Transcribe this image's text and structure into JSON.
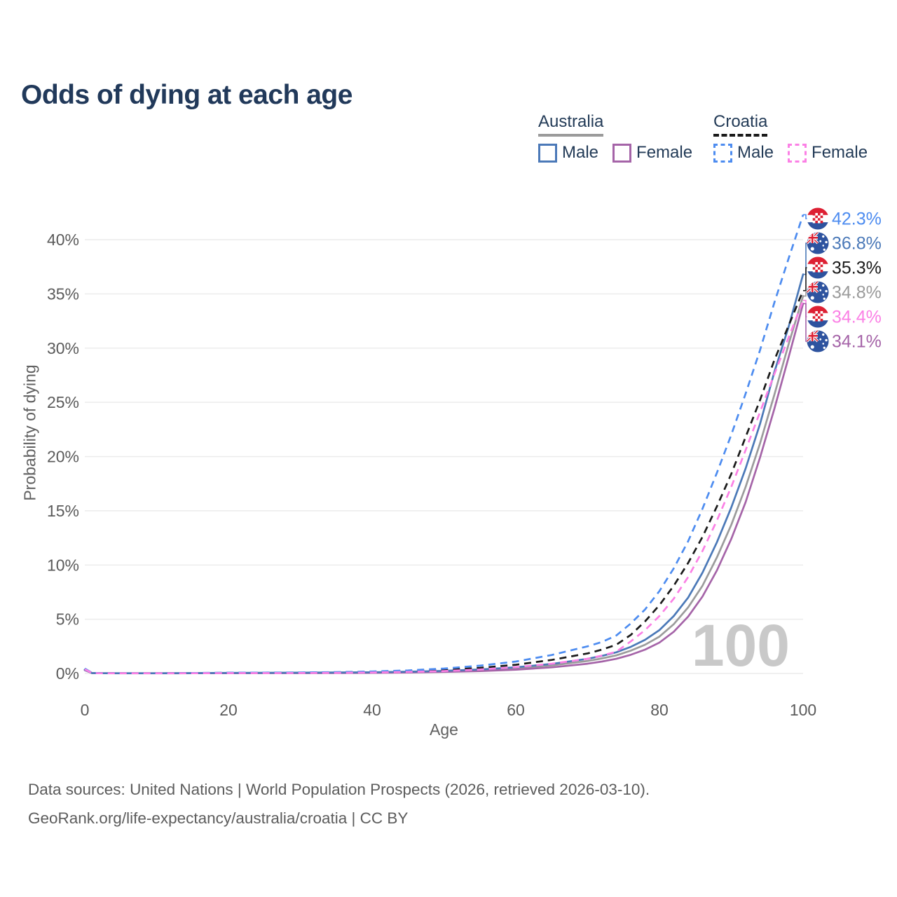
{
  "title": "Odds of dying at each age",
  "legend": {
    "australia": {
      "label": "Australia",
      "male": "Male",
      "female": "Female"
    },
    "croatia": {
      "label": "Croatia",
      "male": "Male",
      "female": "Female"
    }
  },
  "footer": {
    "line1": "Data sources: United Nations | World Population Prospects (2026, retrieved 2026-03-10).",
    "line2": "GeoRank.org/life-expectancy/australia/croatia | CC BY"
  },
  "colors": {
    "title_text": "#21395a",
    "legend_text": "#233b57",
    "axis_text": "#5b5b5b",
    "gridline": "#ececec",
    "watermark": "#c9c9c9",
    "australia_male": "#4b79b8",
    "australia_female": "#a564a8",
    "australia_total": "#9b9b9b",
    "croatia_male": "#4d8cf0",
    "croatia_female": "#fb80e5",
    "croatia_total": "#1a1a1a",
    "flag_red": "#dd2033",
    "flag_blue": "#2e539f"
  },
  "chart_data": {
    "type": "line",
    "title": "Odds of dying at each age",
    "xlabel": "Age",
    "ylabel": "Probability of dying",
    "xlim": [
      0,
      100
    ],
    "ylim": [
      0,
      43
    ],
    "x_ticks": [
      0,
      20,
      40,
      60,
      80,
      100
    ],
    "y_ticks": [
      0,
      5,
      10,
      15,
      20,
      25,
      30,
      35,
      40
    ],
    "y_tick_suffix": "%",
    "grid": "horizontal",
    "legend_position": "top-right",
    "hover_age_indicator": "100",
    "x": [
      0,
      1,
      2,
      5,
      10,
      15,
      20,
      25,
      30,
      35,
      40,
      45,
      50,
      55,
      60,
      65,
      70,
      72,
      74,
      76,
      78,
      80,
      82,
      84,
      86,
      88,
      90,
      92,
      94,
      96,
      98,
      100
    ],
    "series": [
      {
        "name": "Croatia Male",
        "country": "croatia",
        "sex": "male",
        "style": "dashed",
        "color": "#4d8cf0",
        "end_label": "42.3%",
        "values": [
          0.45,
          0.05,
          0.03,
          0.02,
          0.02,
          0.04,
          0.07,
          0.08,
          0.09,
          0.12,
          0.18,
          0.28,
          0.45,
          0.72,
          1.1,
          1.7,
          2.5,
          2.9,
          3.5,
          4.6,
          5.9,
          7.6,
          9.7,
          12.2,
          15.2,
          18.5,
          22.0,
          25.8,
          29.8,
          34.2,
          38.3,
          42.3
        ]
      },
      {
        "name": "Australia Male",
        "country": "australia",
        "sex": "male",
        "style": "solid",
        "color": "#4b79b8",
        "end_label": "36.8%",
        "values": [
          0.35,
          0.04,
          0.02,
          0.02,
          0.02,
          0.03,
          0.05,
          0.06,
          0.07,
          0.09,
          0.11,
          0.16,
          0.24,
          0.37,
          0.57,
          0.88,
          1.35,
          1.62,
          1.95,
          2.45,
          3.1,
          4.0,
          5.3,
          7.0,
          9.3,
          12.1,
          15.3,
          18.9,
          23.0,
          27.8,
          32.0,
          36.8
        ]
      },
      {
        "name": "Croatia Both sexes",
        "country": "croatia",
        "sex": "both",
        "style": "dashed",
        "color": "#1a1a1a",
        "end_label": "35.3%",
        "values": [
          0.42,
          0.04,
          0.03,
          0.02,
          0.02,
          0.03,
          0.05,
          0.06,
          0.07,
          0.09,
          0.13,
          0.2,
          0.32,
          0.52,
          0.8,
          1.25,
          1.85,
          2.2,
          2.65,
          3.55,
          4.8,
          6.3,
          8.1,
          10.2,
          12.6,
          15.4,
          18.4,
          21.8,
          25.2,
          28.9,
          32.1,
          35.3
        ]
      },
      {
        "name": "Australia Both sexes",
        "country": "australia",
        "sex": "both",
        "style": "solid",
        "color": "#9b9b9b",
        "end_label": "34.8%",
        "values": [
          0.33,
          0.03,
          0.02,
          0.02,
          0.02,
          0.02,
          0.04,
          0.05,
          0.05,
          0.07,
          0.09,
          0.13,
          0.2,
          0.31,
          0.48,
          0.74,
          1.15,
          1.38,
          1.67,
          2.1,
          2.65,
          3.4,
          4.55,
          6.1,
          8.1,
          10.7,
          13.7,
          17.2,
          21.2,
          25.7,
          30.4,
          34.8
        ]
      },
      {
        "name": "Croatia Female",
        "country": "croatia",
        "sex": "female",
        "style": "dashed",
        "color": "#fb80e5",
        "end_label": "34.4%",
        "values": [
          0.38,
          0.04,
          0.02,
          0.02,
          0.02,
          0.02,
          0.03,
          0.03,
          0.04,
          0.06,
          0.09,
          0.14,
          0.22,
          0.36,
          0.58,
          0.9,
          1.35,
          1.65,
          2.0,
          2.95,
          4.0,
          5.3,
          6.9,
          8.9,
          11.3,
          14.1,
          17.2,
          20.6,
          24.1,
          27.6,
          31.0,
          34.4
        ]
      },
      {
        "name": "Australia Female",
        "country": "australia",
        "sex": "female",
        "style": "solid",
        "color": "#a564a8",
        "end_label": "34.1%",
        "values": [
          0.3,
          0.03,
          0.02,
          0.01,
          0.01,
          0.02,
          0.02,
          0.03,
          0.03,
          0.04,
          0.06,
          0.09,
          0.14,
          0.22,
          0.35,
          0.56,
          0.9,
          1.1,
          1.35,
          1.72,
          2.2,
          2.85,
          3.85,
          5.25,
          7.1,
          9.5,
          12.4,
          15.8,
          19.9,
          24.4,
          29.2,
          34.1
        ]
      }
    ]
  }
}
